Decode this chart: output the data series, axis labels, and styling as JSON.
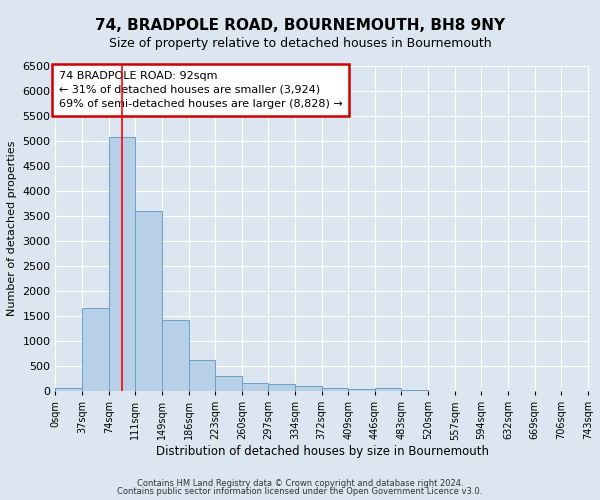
{
  "title": "74, BRADPOLE ROAD, BOURNEMOUTH, BH8 9NY",
  "subtitle": "Size of property relative to detached houses in Bournemouth",
  "xlabel": "Distribution of detached houses by size in Bournemouth",
  "ylabel": "Number of detached properties",
  "footer_line1": "Contains HM Land Registry data © Crown copyright and database right 2024.",
  "footer_line2": "Contains public sector information licensed under the Open Government Licence v3.0.",
  "bin_edges": [
    0,
    37,
    74,
    111,
    148,
    185,
    222,
    259,
    296,
    333,
    370,
    407,
    444,
    481,
    518,
    555,
    592,
    629,
    666,
    703,
    740
  ],
  "bin_labels": [
    "0sqm",
    "37sqm",
    "74sqm",
    "111sqm",
    "149sqm",
    "186sqm",
    "223sqm",
    "260sqm",
    "297sqm",
    "334sqm",
    "372sqm",
    "409sqm",
    "446sqm",
    "483sqm",
    "520sqm",
    "557sqm",
    "594sqm",
    "632sqm",
    "669sqm",
    "706sqm",
    "743sqm"
  ],
  "counts": [
    50,
    1650,
    5080,
    3600,
    1420,
    610,
    300,
    160,
    130,
    100,
    60,
    40,
    50,
    10,
    5,
    3,
    2,
    1,
    1,
    1
  ],
  "bar_color": "#b8cfe8",
  "bar_edge_color": "#6aa0cc",
  "red_line_x": 92,
  "ylim": [
    0,
    6500
  ],
  "yticks": [
    0,
    500,
    1000,
    1500,
    2000,
    2500,
    3000,
    3500,
    4000,
    4500,
    5000,
    5500,
    6000,
    6500
  ],
  "annotation_title": "74 BRADPOLE ROAD: 92sqm",
  "annotation_line1": "← 31% of detached houses are smaller (3,924)",
  "annotation_line2": "69% of semi-detached houses are larger (8,828) →",
  "box_facecolor": "#ffffff",
  "box_edgecolor": "#cc0000",
  "background_color": "#dce6f0",
  "grid_color": "#ffffff",
  "spine_color": "#aaaaaa"
}
